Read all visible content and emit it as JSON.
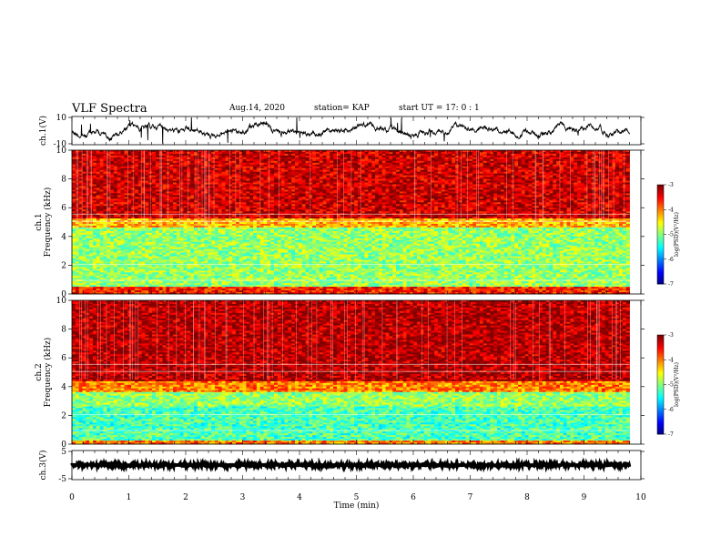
{
  "header": {
    "title": "VLF Spectra",
    "date": "Aug.14, 2020",
    "station": "station= KAP",
    "start": "start  UT  =   17: 0  : 1"
  },
  "chart_data": [
    {
      "type": "line",
      "name": "ch1-waveform",
      "ylabel": "ch.1(V)",
      "ylim": [
        -10,
        10
      ],
      "yticks": [
        "10",
        "-10"
      ],
      "xlim": [
        0,
        10
      ],
      "x_end": 9.8,
      "color": "#000000"
    },
    {
      "type": "heatmap",
      "name": "ch1-spectrogram",
      "ylabel": "ch.1\nFrequency (kHz)",
      "ylim": [
        0,
        10
      ],
      "yticks": [
        "0",
        "2",
        "4",
        "6",
        "8",
        "10"
      ],
      "xlim": [
        0,
        10
      ],
      "x_end": 9.8,
      "colorbar": {
        "label": "log(PSD)(V²/Hz)",
        "range": [
          -7,
          -3
        ],
        "ticks": [
          "-3",
          "-4",
          "-5",
          "-6",
          "-7"
        ]
      },
      "bands": [
        {
          "from": 0,
          "to": 0.5,
          "level": -3.6
        },
        {
          "from": 0.5,
          "to": 2.5,
          "level": -4.9
        },
        {
          "from": 2.5,
          "to": 4.6,
          "level": -4.9
        },
        {
          "from": 4.6,
          "to": 5.2,
          "level": -4.2
        },
        {
          "from": 5.2,
          "to": 10,
          "level": -3.3
        }
      ]
    },
    {
      "type": "heatmap",
      "name": "ch2-spectrogram",
      "ylabel": "ch.2\nFrequency (kHz)",
      "ylim": [
        0,
        10
      ],
      "yticks": [
        "0",
        "2",
        "4",
        "6",
        "8",
        "10"
      ],
      "xlim": [
        0,
        10
      ],
      "x_end": 9.8,
      "colorbar": {
        "label": "log(PSD)(V²/Hz)",
        "range": [
          -7,
          -3
        ],
        "ticks": [
          "-3",
          "-4",
          "-5",
          "-6",
          "-7"
        ]
      },
      "bands": [
        {
          "from": 0,
          "to": 0.3,
          "level": -4.0
        },
        {
          "from": 0.3,
          "to": 2.6,
          "level": -5.2
        },
        {
          "from": 2.6,
          "to": 3.6,
          "level": -4.9
        },
        {
          "from": 3.6,
          "to": 4.4,
          "level": -4.0
        },
        {
          "from": 4.4,
          "to": 10,
          "level": -3.2
        }
      ]
    },
    {
      "type": "line",
      "name": "ch3-waveform",
      "ylabel": "ch.3(V)",
      "ylim": [
        -5,
        5
      ],
      "yticks": [
        "5",
        "-5"
      ],
      "xlim": [
        0,
        10
      ],
      "x_end": 9.8,
      "xlabel": "Time (min)",
      "xticks": [
        "0",
        "1",
        "2",
        "3",
        "4",
        "5",
        "6",
        "7",
        "8",
        "9",
        "10"
      ],
      "color": "#000000"
    }
  ]
}
